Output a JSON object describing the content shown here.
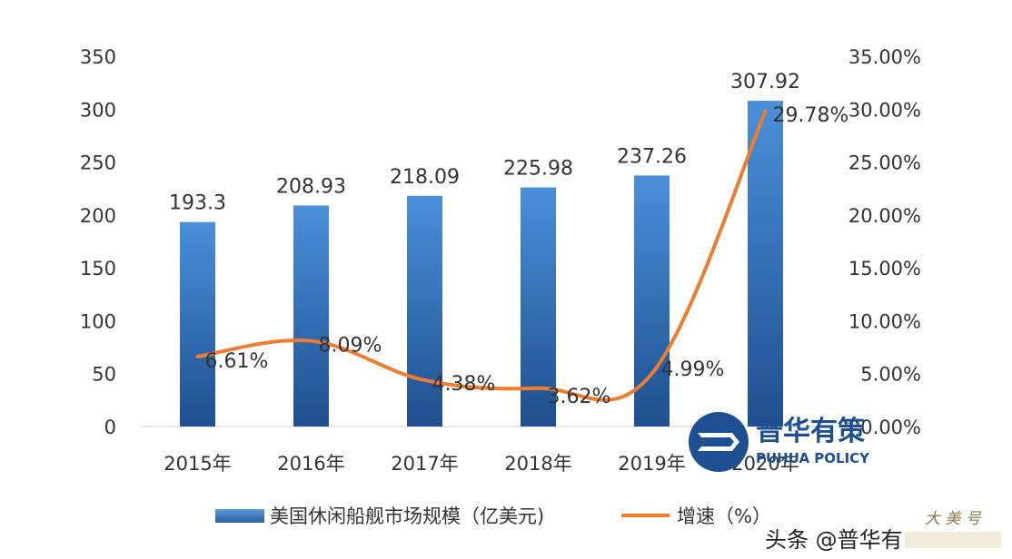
{
  "chart_data": {
    "type": "bar",
    "categories": [
      "2015年",
      "2016年",
      "2017年",
      "2018年",
      "2019年",
      "2020年"
    ],
    "series": [
      {
        "name": "美国休闲船舰市场规模（亿美元)",
        "type": "bar",
        "axis": "left",
        "color": "#2f6db5",
        "values": [
          193.3,
          208.93,
          218.09,
          225.98,
          237.26,
          307.92
        ],
        "labels": [
          "193.3",
          "208.93",
          "218.09",
          "225.98",
          "237.26",
          "307.92"
        ]
      },
      {
        "name": "增速（%）",
        "type": "line",
        "axis": "right",
        "color": "#ed7d31",
        "values": [
          6.61,
          8.09,
          4.38,
          3.62,
          4.99,
          29.78
        ],
        "labels": [
          "6.61%",
          "8.09%",
          "4.38%",
          "3.62%",
          "4.99%",
          "29.78%"
        ]
      }
    ],
    "y_left": {
      "range": [
        0,
        350
      ],
      "ticks": [
        0,
        50,
        100,
        150,
        200,
        250,
        300,
        350
      ],
      "tick_labels": [
        "0",
        "50",
        "100",
        "150",
        "200",
        "250",
        "300",
        "350"
      ]
    },
    "y_right": {
      "range": [
        0,
        35
      ],
      "ticks": [
        0,
        5,
        10,
        15,
        20,
        25,
        30,
        35
      ],
      "tick_labels": [
        "0.00%",
        "5.00%",
        "10.00%",
        "15.00%",
        "20.00%",
        "25.00%",
        "30.00%",
        "35.00%"
      ]
    },
    "grid": false,
    "legend_position": "bottom"
  },
  "logo": {
    "name_cn": "普华有策",
    "name_en": "PUHUA POLICY"
  },
  "watermark": {
    "text": "头条 @普华有"
  }
}
